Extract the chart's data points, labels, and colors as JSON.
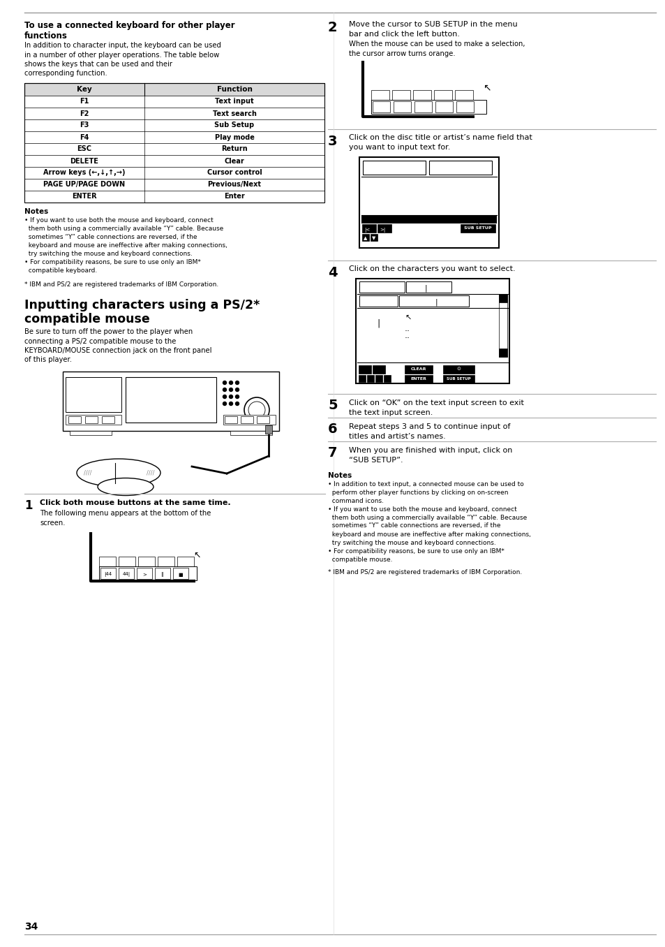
{
  "page_number": "34",
  "bg_color": "#ffffff",
  "table_headers": [
    "Key",
    "Function"
  ],
  "table_rows": [
    [
      "F1",
      "Text input"
    ],
    [
      "F2",
      "Text search"
    ],
    [
      "F3",
      "Sub Setup"
    ],
    [
      "F4",
      "Play mode"
    ],
    [
      "ESC",
      "Return"
    ],
    [
      "DELETE",
      "Clear"
    ],
    [
      "Arrow keys (←,↓,↑,→)",
      "Cursor control"
    ],
    [
      "PAGE UP/PAGE DOWN",
      "Previous/Next"
    ],
    [
      "ENTER",
      "Enter"
    ]
  ],
  "divider_gray": "#999999",
  "divider_light": "#cccccc"
}
